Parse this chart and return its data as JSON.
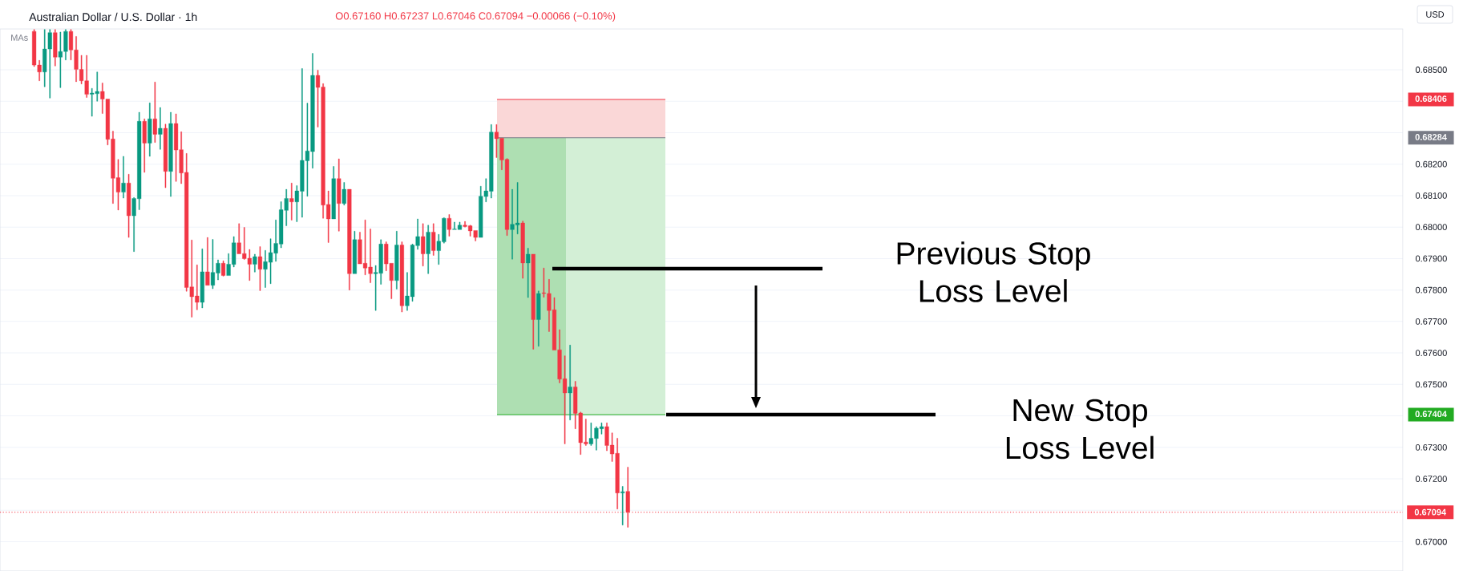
{
  "chart_data": {
    "type": "candlestick",
    "title": "Australian Dollar / U.S. Dollar · 1h",
    "subtitle": "O0.67160 H0.67237 L0.67046 C0.67094 −0.00066 (−0.10%)",
    "ylabel": "USD",
    "annotations": [
      "MAs"
    ],
    "categories": [
      null,
      null,
      null,
      null,
      null,
      null,
      null,
      null,
      null,
      null,
      null,
      null,
      null,
      null,
      null,
      null,
      null,
      null,
      null,
      null,
      null,
      null,
      null,
      null,
      null,
      null,
      null,
      null,
      null,
      null,
      null,
      null,
      null,
      null,
      null,
      null,
      null,
      null,
      null,
      null,
      null,
      null,
      null,
      null,
      null,
      null,
      null,
      null,
      null,
      null,
      null,
      null,
      null,
      null,
      null,
      null,
      null,
      null,
      null,
      null,
      null,
      null,
      null,
      null,
      null,
      null,
      null,
      null,
      null,
      null,
      null,
      null,
      null,
      null,
      null,
      null,
      null,
      null,
      null,
      null,
      null,
      null,
      null,
      null,
      null,
      null,
      null,
      null,
      null,
      null,
      null,
      null,
      null,
      null,
      null,
      null,
      null,
      null,
      null,
      null,
      null,
      null,
      null,
      null,
      null,
      null,
      null,
      null,
      null,
      null,
      null,
      null,
      null,
      null,
      null,
      null,
      null,
      null,
      null,
      null,
      null,
      null,
      null,
      null,
      null,
      null,
      null,
      null,
      null,
      null,
      null,
      null,
      null,
      null,
      null,
      null,
      null,
      null,
      null,
      null,
      null,
      null,
      null,
      null,
      null,
      null,
      null,
      null,
      null,
      null,
      null,
      null,
      null,
      null,
      null,
      null,
      null,
      null,
      null,
      null,
      null,
      null,
      null,
      null,
      null,
      null,
      null,
      null,
      null,
      null,
      null,
      null,
      null,
      null,
      null,
      null,
      null,
      null,
      null,
      null,
      null,
      null,
      null,
      null,
      null,
      null,
      null,
      null,
      null,
      null,
      null,
      null,
      null,
      null,
      null,
      null,
      null,
      null,
      null,
      null,
      null,
      null,
      null,
      null,
      null,
      null,
      null,
      null,
      null,
      null,
      null,
      null,
      null,
      null,
      null,
      null,
      null,
      null,
      null,
      null,
      null,
      null,
      null,
      null,
      null,
      null,
      null,
      null,
      null,
      null,
      null,
      null,
      null,
      null,
      null,
      null,
      null,
      null,
      null,
      null,
      null,
      null,
      null,
      null,
      null,
      null,
      null,
      null,
      null,
      null,
      null,
      null,
      null,
      null,
      null,
      null,
      null,
      null,
      null,
      null,
      null,
      null,
      null,
      null,
      null,
      null,
      null
    ],
    "ohlc": [
      null,
      null,
      null,
      null,
      null,
      null,
      [
        0.68622,
        0.68628,
        0.6851,
        0.68515
      ],
      [
        0.68515,
        0.6853,
        0.68465,
        0.68493
      ],
      [
        0.68493,
        0.68628,
        0.68446,
        0.68566
      ],
      [
        0.68566,
        0.68628,
        0.6841,
        0.68618
      ],
      [
        0.68618,
        0.68628,
        0.68512,
        0.6854
      ],
      [
        0.6854,
        0.6862,
        0.68443,
        0.68558
      ],
      [
        0.68558,
        0.68628,
        0.68531,
        0.68622
      ],
      [
        0.68622,
        0.68628,
        0.68531,
        0.68563
      ],
      [
        0.68563,
        0.68606,
        0.68462,
        0.68501
      ],
      [
        0.68501,
        0.68546,
        0.68455,
        0.68465
      ],
      [
        0.68465,
        0.68546,
        0.68412,
        0.68422
      ],
      [
        0.68422,
        0.68441,
        0.68352,
        0.68426
      ],
      [
        0.68424,
        0.68493,
        0.684,
        0.68431
      ],
      [
        0.68431,
        0.68458,
        0.68361,
        0.68407
      ],
      [
        0.68407,
        0.68407,
        0.68261,
        0.68279
      ],
      [
        0.6828,
        0.68305,
        0.68075,
        0.68155
      ],
      [
        0.68157,
        0.68215,
        0.68054,
        0.68111
      ],
      [
        0.68111,
        0.68225,
        0.68092,
        0.6814
      ],
      [
        0.6814,
        0.68168,
        0.67967,
        0.68036
      ],
      [
        0.68036,
        0.68094,
        0.67922,
        0.68091
      ],
      [
        0.6809,
        0.68365,
        0.68055,
        0.68336
      ],
      [
        0.68336,
        0.68344,
        0.68174,
        0.68267
      ],
      [
        0.68267,
        0.68395,
        0.68225,
        0.68344
      ],
      [
        0.68344,
        0.68461,
        0.68269,
        0.68295
      ],
      [
        0.68295,
        0.6838,
        0.68247,
        0.68314
      ],
      [
        0.68314,
        0.68327,
        0.68125,
        0.68177
      ],
      [
        0.68177,
        0.68365,
        0.68097,
        0.68329
      ],
      [
        0.68329,
        0.6836,
        0.68145,
        0.68245
      ],
      [
        0.68246,
        0.68303,
        0.68138,
        0.68172
      ],
      [
        0.68174,
        0.68234,
        0.67796,
        0.67808
      ],
      [
        0.6781,
        0.67959,
        0.67714,
        0.67779
      ],
      [
        0.67781,
        0.6788,
        0.67737,
        0.67761
      ],
      [
        0.67761,
        0.67931,
        0.67743,
        0.67858
      ],
      [
        0.67858,
        0.67967,
        0.67815,
        0.67815
      ],
      [
        0.67815,
        0.67961,
        0.67804,
        0.67856
      ],
      [
        0.67854,
        0.67896,
        0.67832,
        0.67885
      ],
      [
        0.67885,
        0.67893,
        0.67844,
        0.67846
      ],
      [
        0.67846,
        0.67916,
        0.67846,
        0.67882
      ],
      [
        0.67881,
        0.6797,
        0.67873,
        0.6795
      ],
      [
        0.6795,
        0.68011,
        0.67915,
        0.67915
      ],
      [
        0.67916,
        0.67999,
        0.67897,
        0.679
      ],
      [
        0.67901,
        0.67929,
        0.6783,
        0.67882
      ],
      [
        0.67882,
        0.67914,
        0.67857,
        0.67906
      ],
      [
        0.67906,
        0.67938,
        0.67798,
        0.67866
      ],
      [
        0.67866,
        0.67926,
        0.67808,
        0.6789
      ],
      [
        0.67888,
        0.67963,
        0.6782,
        0.67919
      ],
      [
        0.67917,
        0.68023,
        0.67891,
        0.67948
      ],
      [
        0.67946,
        0.68081,
        0.67934,
        0.68055
      ],
      [
        0.68053,
        0.6812,
        0.68004,
        0.68091
      ],
      [
        0.68091,
        0.6814,
        0.68022,
        0.6808
      ],
      [
        0.6808,
        0.68132,
        0.68017,
        0.68115
      ],
      [
        0.68114,
        0.68504,
        0.68031,
        0.68212
      ],
      [
        0.68211,
        0.68394,
        0.68098,
        0.68242
      ],
      [
        0.6824,
        0.68552,
        0.68187,
        0.68482
      ],
      [
        0.68482,
        0.68499,
        0.68318,
        0.68444
      ],
      [
        0.68445,
        0.68456,
        0.68028,
        0.6807
      ],
      [
        0.68072,
        0.68115,
        0.67951,
        0.68026
      ],
      [
        0.68026,
        0.68193,
        0.68026,
        0.68154
      ],
      [
        0.68154,
        0.68217,
        0.67987,
        0.68075
      ],
      [
        0.68075,
        0.68142,
        0.6807,
        0.6812
      ],
      [
        0.6812,
        0.6812,
        0.678,
        0.67852
      ],
      [
        0.67852,
        0.67987,
        0.67852,
        0.6796
      ],
      [
        0.6796,
        0.67984,
        0.67883,
        0.67883
      ],
      [
        0.67885,
        0.68023,
        0.67848,
        0.6787
      ],
      [
        0.67873,
        0.67994,
        0.67823,
        0.67852
      ],
      [
        0.67852,
        0.67878,
        0.67735,
        0.67856
      ],
      [
        0.67853,
        0.6796,
        0.67818,
        0.67946
      ],
      [
        0.67946,
        0.67953,
        0.67861,
        0.67883
      ],
      [
        0.67885,
        0.67885,
        0.67772,
        0.6783
      ],
      [
        0.6783,
        0.67987,
        0.67803,
        0.67943
      ],
      [
        0.67943,
        0.67953,
        0.6773,
        0.6775
      ],
      [
        0.6775,
        0.67856,
        0.67735,
        0.67781
      ],
      [
        0.67779,
        0.67946,
        0.67764,
        0.67943
      ],
      [
        0.67941,
        0.68026,
        0.67929,
        0.6797
      ],
      [
        0.6797,
        0.68011,
        0.67876,
        0.67915
      ],
      [
        0.67915,
        0.68006,
        0.67852,
        0.67984
      ],
      [
        0.67984,
        0.68011,
        0.6791,
        0.67925
      ],
      [
        0.67925,
        0.67977,
        0.67881,
        0.67955
      ],
      [
        0.67953,
        0.6803,
        0.67949,
        0.68028
      ],
      [
        0.68028,
        0.6804,
        0.67971,
        0.67992
      ],
      [
        0.67992,
        0.68016,
        0.67992,
        0.67994
      ],
      [
        0.67992,
        0.68016,
        0.67992,
        0.68006
      ],
      [
        0.68006,
        0.68018,
        0.68,
        0.68002
      ],
      [
        0.68004,
        0.68006,
        0.67971,
        0.67988
      ],
      [
        0.67989,
        0.67989,
        0.67956,
        0.67967
      ],
      [
        0.67967,
        0.6813,
        0.67967,
        0.68098
      ],
      [
        0.68097,
        0.68154,
        0.6808,
        0.68115
      ],
      [
        0.68114,
        0.68326,
        0.68092,
        0.68302
      ],
      [
        0.68302,
        0.68326,
        0.68221,
        0.68281
      ],
      [
        0.68283,
        0.68283,
        0.68182,
        0.68213
      ],
      [
        0.68215,
        0.68218,
        0.67973,
        0.67992
      ],
      [
        0.67992,
        0.6812,
        0.67898,
        0.68009
      ],
      [
        0.68007,
        0.68142,
        0.67978,
        0.68013
      ],
      [
        0.68013,
        0.68019,
        0.67837,
        0.67886
      ],
      [
        0.67886,
        0.67933,
        0.67776,
        0.67914
      ],
      [
        0.67914,
        0.67914,
        0.67612,
        0.67706
      ],
      [
        0.67706,
        0.67797,
        0.67621,
        0.67789
      ],
      [
        0.67791,
        0.6787,
        0.67777,
        0.67789
      ],
      [
        0.67789,
        0.67834,
        0.67668,
        0.67735
      ],
      [
        0.67737,
        0.67776,
        0.67609,
        0.67609
      ],
      [
        0.6761,
        0.67674,
        0.67505,
        0.67517
      ],
      [
        0.67518,
        0.67591,
        0.67311,
        0.67473
      ],
      [
        0.67473,
        0.67625,
        0.67387,
        0.67492
      ],
      [
        0.67492,
        0.6751,
        0.67359,
        0.67408
      ],
      [
        0.67409,
        0.67412,
        0.67277,
        0.67315
      ],
      [
        0.67317,
        0.6739,
        0.67306,
        0.67311
      ],
      [
        0.67311,
        0.67378,
        0.67306,
        0.67329
      ],
      [
        0.67328,
        0.67366,
        0.67291,
        0.67361
      ],
      [
        0.67359,
        0.67378,
        0.67342,
        0.67366
      ],
      [
        0.67366,
        0.67378,
        0.67289,
        0.67306
      ],
      [
        0.67307,
        0.67346,
        0.67255,
        0.67279
      ],
      [
        0.67281,
        0.67329,
        0.67104,
        0.67155
      ],
      [
        0.67155,
        0.67176,
        0.67053,
        0.67159
      ],
      [
        0.6716,
        0.67237,
        0.67046,
        0.67094
      ],
      null,
      null,
      null,
      null,
      null,
      null,
      null,
      null,
      null,
      null,
      null,
      null,
      null,
      null,
      null,
      null,
      null,
      null,
      null,
      null,
      null,
      null,
      null,
      null,
      null,
      null,
      null,
      null,
      null,
      null,
      null,
      null,
      null,
      null,
      null,
      null,
      null,
      null,
      null,
      null,
      null,
      null,
      null,
      null,
      null,
      null,
      null,
      null,
      null,
      null,
      null,
      null,
      null,
      null,
      null,
      null,
      null,
      null,
      null,
      null,
      null,
      null,
      null,
      null,
      null,
      null,
      null,
      null,
      null,
      null,
      null,
      null,
      null,
      null,
      null,
      null,
      null,
      null,
      null,
      null,
      null,
      null,
      null,
      null,
      null,
      null,
      null,
      null,
      null,
      null,
      null,
      null,
      null,
      null,
      null,
      null,
      null,
      null,
      null,
      null,
      null,
      null,
      null,
      null,
      null,
      null,
      null,
      null,
      null,
      null,
      null,
      null,
      null,
      null,
      null,
      null,
      null,
      null,
      null,
      null,
      null,
      null,
      null,
      null,
      null,
      null,
      null,
      null,
      null,
      null,
      null,
      null,
      null,
      null,
      null,
      null,
      null,
      null,
      null,
      null,
      null,
      null,
      null,
      null,
      null,
      null,
      null
    ],
    "colors": [
      null,
      null,
      null,
      null,
      null,
      null,
      "#f23645",
      "#f23645",
      "#089981",
      "#089981",
      "#f23645",
      "#089981",
      "#089981",
      "#f23645",
      "#f23645",
      "#f23645",
      "#f23645",
      "#089981",
      "#089981",
      "#f23645",
      "#f23645",
      "#f23645",
      "#f23645",
      "#089981",
      "#f23645",
      "#089981",
      "#089981",
      "#f23645",
      "#089981",
      "#f23645",
      "#089981",
      "#f23645",
      "#089981",
      "#f23645",
      "#f23645",
      "#f23645",
      "#f23645",
      "#f23645",
      "#089981",
      "#f23645",
      "#089981",
      "#089981",
      "#f23645",
      "#089981",
      "#089981",
      "#f23645",
      "#f23645",
      "#f23645",
      "#089981",
      "#f23645",
      "#089981",
      "#089981",
      "#089981",
      "#089981",
      "#089981",
      "#f23645",
      "#089981",
      "#089981",
      "#089981",
      "#089981",
      "#f23645",
      "#f23645",
      "#f23645",
      "#089981",
      "#f23645",
      "#089981",
      "#f23645",
      "#089981",
      "#f23645",
      "#f23645",
      "#f23645",
      "#089981",
      "#089981",
      "#f23645",
      "#f23645",
      "#089981",
      "#f23645",
      "#089981",
      "#089981",
      "#089981",
      "#f23645",
      "#089981",
      "#f23645",
      "#089981",
      "#089981",
      "#f23645",
      "#089981",
      "#089981",
      "#f23645",
      "#f23645",
      "#f23645",
      "#089981",
      "#089981",
      "#089981",
      "#f23645",
      "#f23645",
      "#f23645",
      "#089981",
      "#089981",
      "#f23645",
      "#089981",
      "#f23645",
      "#089981",
      "#f23645",
      "#f23645",
      "#f23645",
      "#f23645",
      "#f23645",
      "#089981",
      "#f23645",
      "#f23645",
      "#f23645",
      "#089981",
      "#089981",
      "#089981",
      "#f23645",
      "#f23645",
      "#f23645",
      "#089981",
      "#f23645",
      null,
      null,
      null,
      null,
      null,
      null,
      null,
      null,
      null,
      null,
      null,
      null,
      null,
      null,
      null,
      null,
      null,
      null,
      null,
      null,
      null,
      null,
      null,
      null,
      null,
      null,
      null,
      null,
      null,
      null,
      null,
      null,
      null,
      null,
      null,
      null,
      null,
      null,
      null,
      null,
      null,
      null,
      null,
      null,
      null,
      null,
      null,
      null,
      null,
      null,
      null,
      null,
      null,
      null,
      null,
      null,
      null,
      null,
      null,
      null,
      null,
      null,
      null,
      null,
      null,
      null,
      null,
      null,
      null,
      null,
      null,
      null,
      null,
      null,
      null,
      null,
      null,
      null,
      null,
      null,
      null,
      null,
      null,
      null,
      null,
      null,
      null,
      null,
      null,
      null,
      null,
      null,
      null,
      null,
      null,
      null,
      null,
      null,
      null,
      null,
      null,
      null,
      null,
      null,
      null,
      null,
      null,
      null,
      null,
      null,
      null,
      null,
      null,
      null,
      null,
      null,
      null,
      null,
      null,
      null,
      null,
      null,
      null,
      null,
      null,
      null,
      null,
      null,
      null,
      null,
      null,
      null,
      null,
      null,
      null,
      null,
      null,
      null,
      null,
      null,
      null,
      null,
      null,
      null,
      null,
      null,
      null
    ],
    "ylim": [
      0.66907,
      0.6863
    ],
    "yticks": [
      {
        "value": 0.67,
        "label": "0.67000"
      },
      {
        "value": 0.671,
        "label": null
      },
      {
        "value": 0.672,
        "label": "0.67200"
      },
      {
        "value": 0.673,
        "label": "0.67300"
      },
      {
        "value": 0.674,
        "label": null
      },
      {
        "value": 0.67404,
        "label": "0.67404"
      },
      {
        "value": 0.675,
        "label": "0.67500"
      },
      {
        "value": 0.676,
        "label": "0.67600"
      },
      {
        "value": 0.677,
        "label": "0.67700"
      },
      {
        "value": 0.678,
        "label": "0.67800"
      },
      {
        "value": 0.679,
        "label": "0.67900"
      },
      {
        "value": 0.68,
        "label": "0.68000"
      },
      {
        "value": 0.681,
        "label": "0.68100"
      },
      {
        "value": 0.682,
        "label": "0.68200"
      },
      {
        "value": 0.68284,
        "label": "0.68284"
      },
      {
        "value": 0.683,
        "label": null
      },
      {
        "value": 0.684,
        "label": null
      },
      {
        "value": 0.68406,
        "label": "0.68406"
      },
      {
        "value": 0.685,
        "label": "0.68500"
      }
    ],
    "tick_labels": "y",
    "grid": "y",
    "bands": [
      {
        "axis": "y",
        "from": 0.68284,
        "to": 0.68406,
        "color": "#fad7d7"
      },
      {
        "axis": "y",
        "from": 0.67404,
        "to": 0.68284,
        "color": "#d3efd6"
      },
      {
        "axis": "y",
        "from": 0.67404,
        "to": 0.68284,
        "color": "#aedfb2"
      }
    ],
    "ref_lines": [
      {
        "axis": "y",
        "value": 0.68406,
        "color": "#f23645"
      },
      {
        "axis": "y",
        "value": 0.68284,
        "color": "#787b86"
      },
      {
        "axis": "y",
        "value": 0.67404,
        "color": "#22ab22"
      },
      {
        "axis": "y",
        "value": 0.67094,
        "label": "0.67094",
        "color": "#f23645",
        "line_style": "dotted"
      },
      {
        "axis": "y",
        "value": 0.67868,
        "label": "Previous Stop Loss Level",
        "color": "#000000"
      },
      {
        "axis": "y",
        "value": 0.67404,
        "label": "New Stop Loss Level",
        "color": "#000000"
      }
    ]
  }
}
